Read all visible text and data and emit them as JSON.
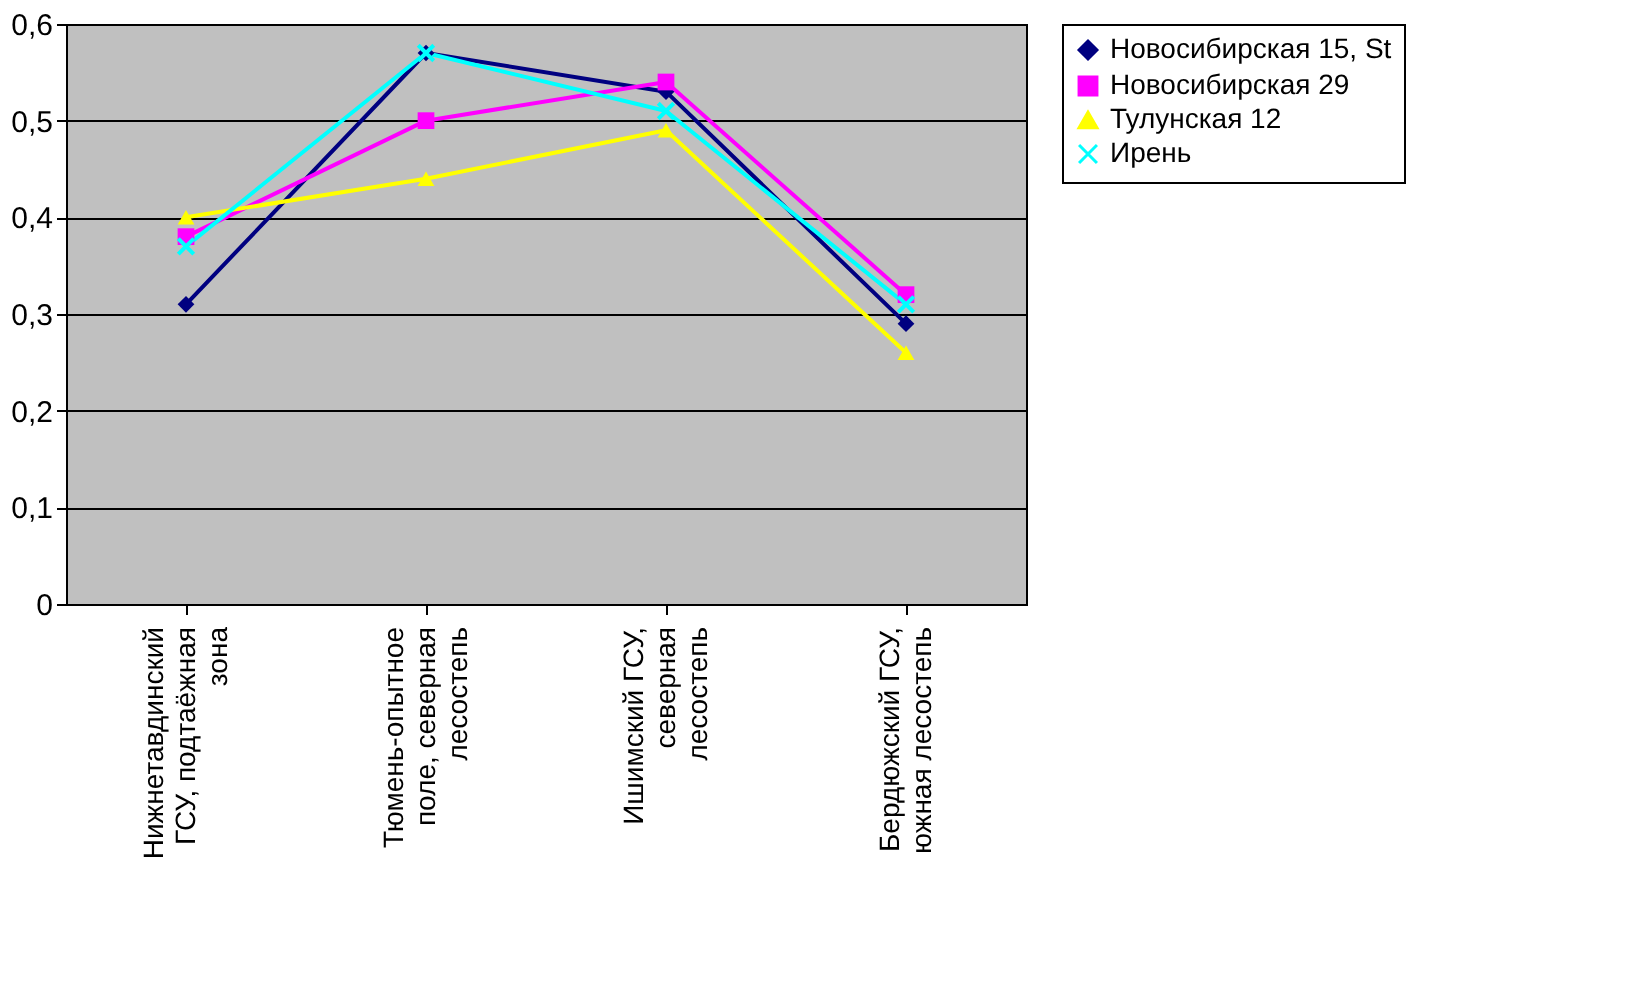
{
  "chart_data": {
    "type": "line",
    "categories": [
      "Нижнетавдинский ГСУ, подтаёжная зона",
      "Тюмень-опытное поле, северная лесостепь",
      "Ишимский ГСУ, северная лесостепь",
      "Бердюжский ГСУ, южная лесостепь"
    ],
    "series": [
      {
        "name": "Новосибирская 15, St",
        "color": "#000080",
        "marker": "diamond",
        "values": [
          0.31,
          0.57,
          0.53,
          0.29
        ]
      },
      {
        "name": "Новосибирская 29",
        "color": "#ff00ff",
        "marker": "square",
        "values": [
          0.38,
          0.5,
          0.54,
          0.32
        ]
      },
      {
        "name": "Тулунская 12",
        "color": "#ffff00",
        "marker": "triangle",
        "values": [
          0.4,
          0.44,
          0.49,
          0.26
        ]
      },
      {
        "name": "Ирень",
        "color": "#00ffff",
        "marker": "cross",
        "values": [
          0.37,
          0.57,
          0.51,
          0.31
        ]
      }
    ],
    "ylim": [
      0,
      0.6
    ],
    "yticks": [
      0,
      {
        "value": 0.1,
        "label": "0,1"
      },
      {
        "value": 0.2,
        "label": "0,2"
      },
      {
        "value": 0.3,
        "label": "0,3"
      },
      {
        "value": 0.4,
        "label": "0,4"
      },
      {
        "value": 0.5,
        "label": "0,5"
      },
      {
        "value": 0.6,
        "label": "0,6"
      }
    ],
    "grid": "y",
    "legend": "right",
    "line_style": "solid"
  }
}
